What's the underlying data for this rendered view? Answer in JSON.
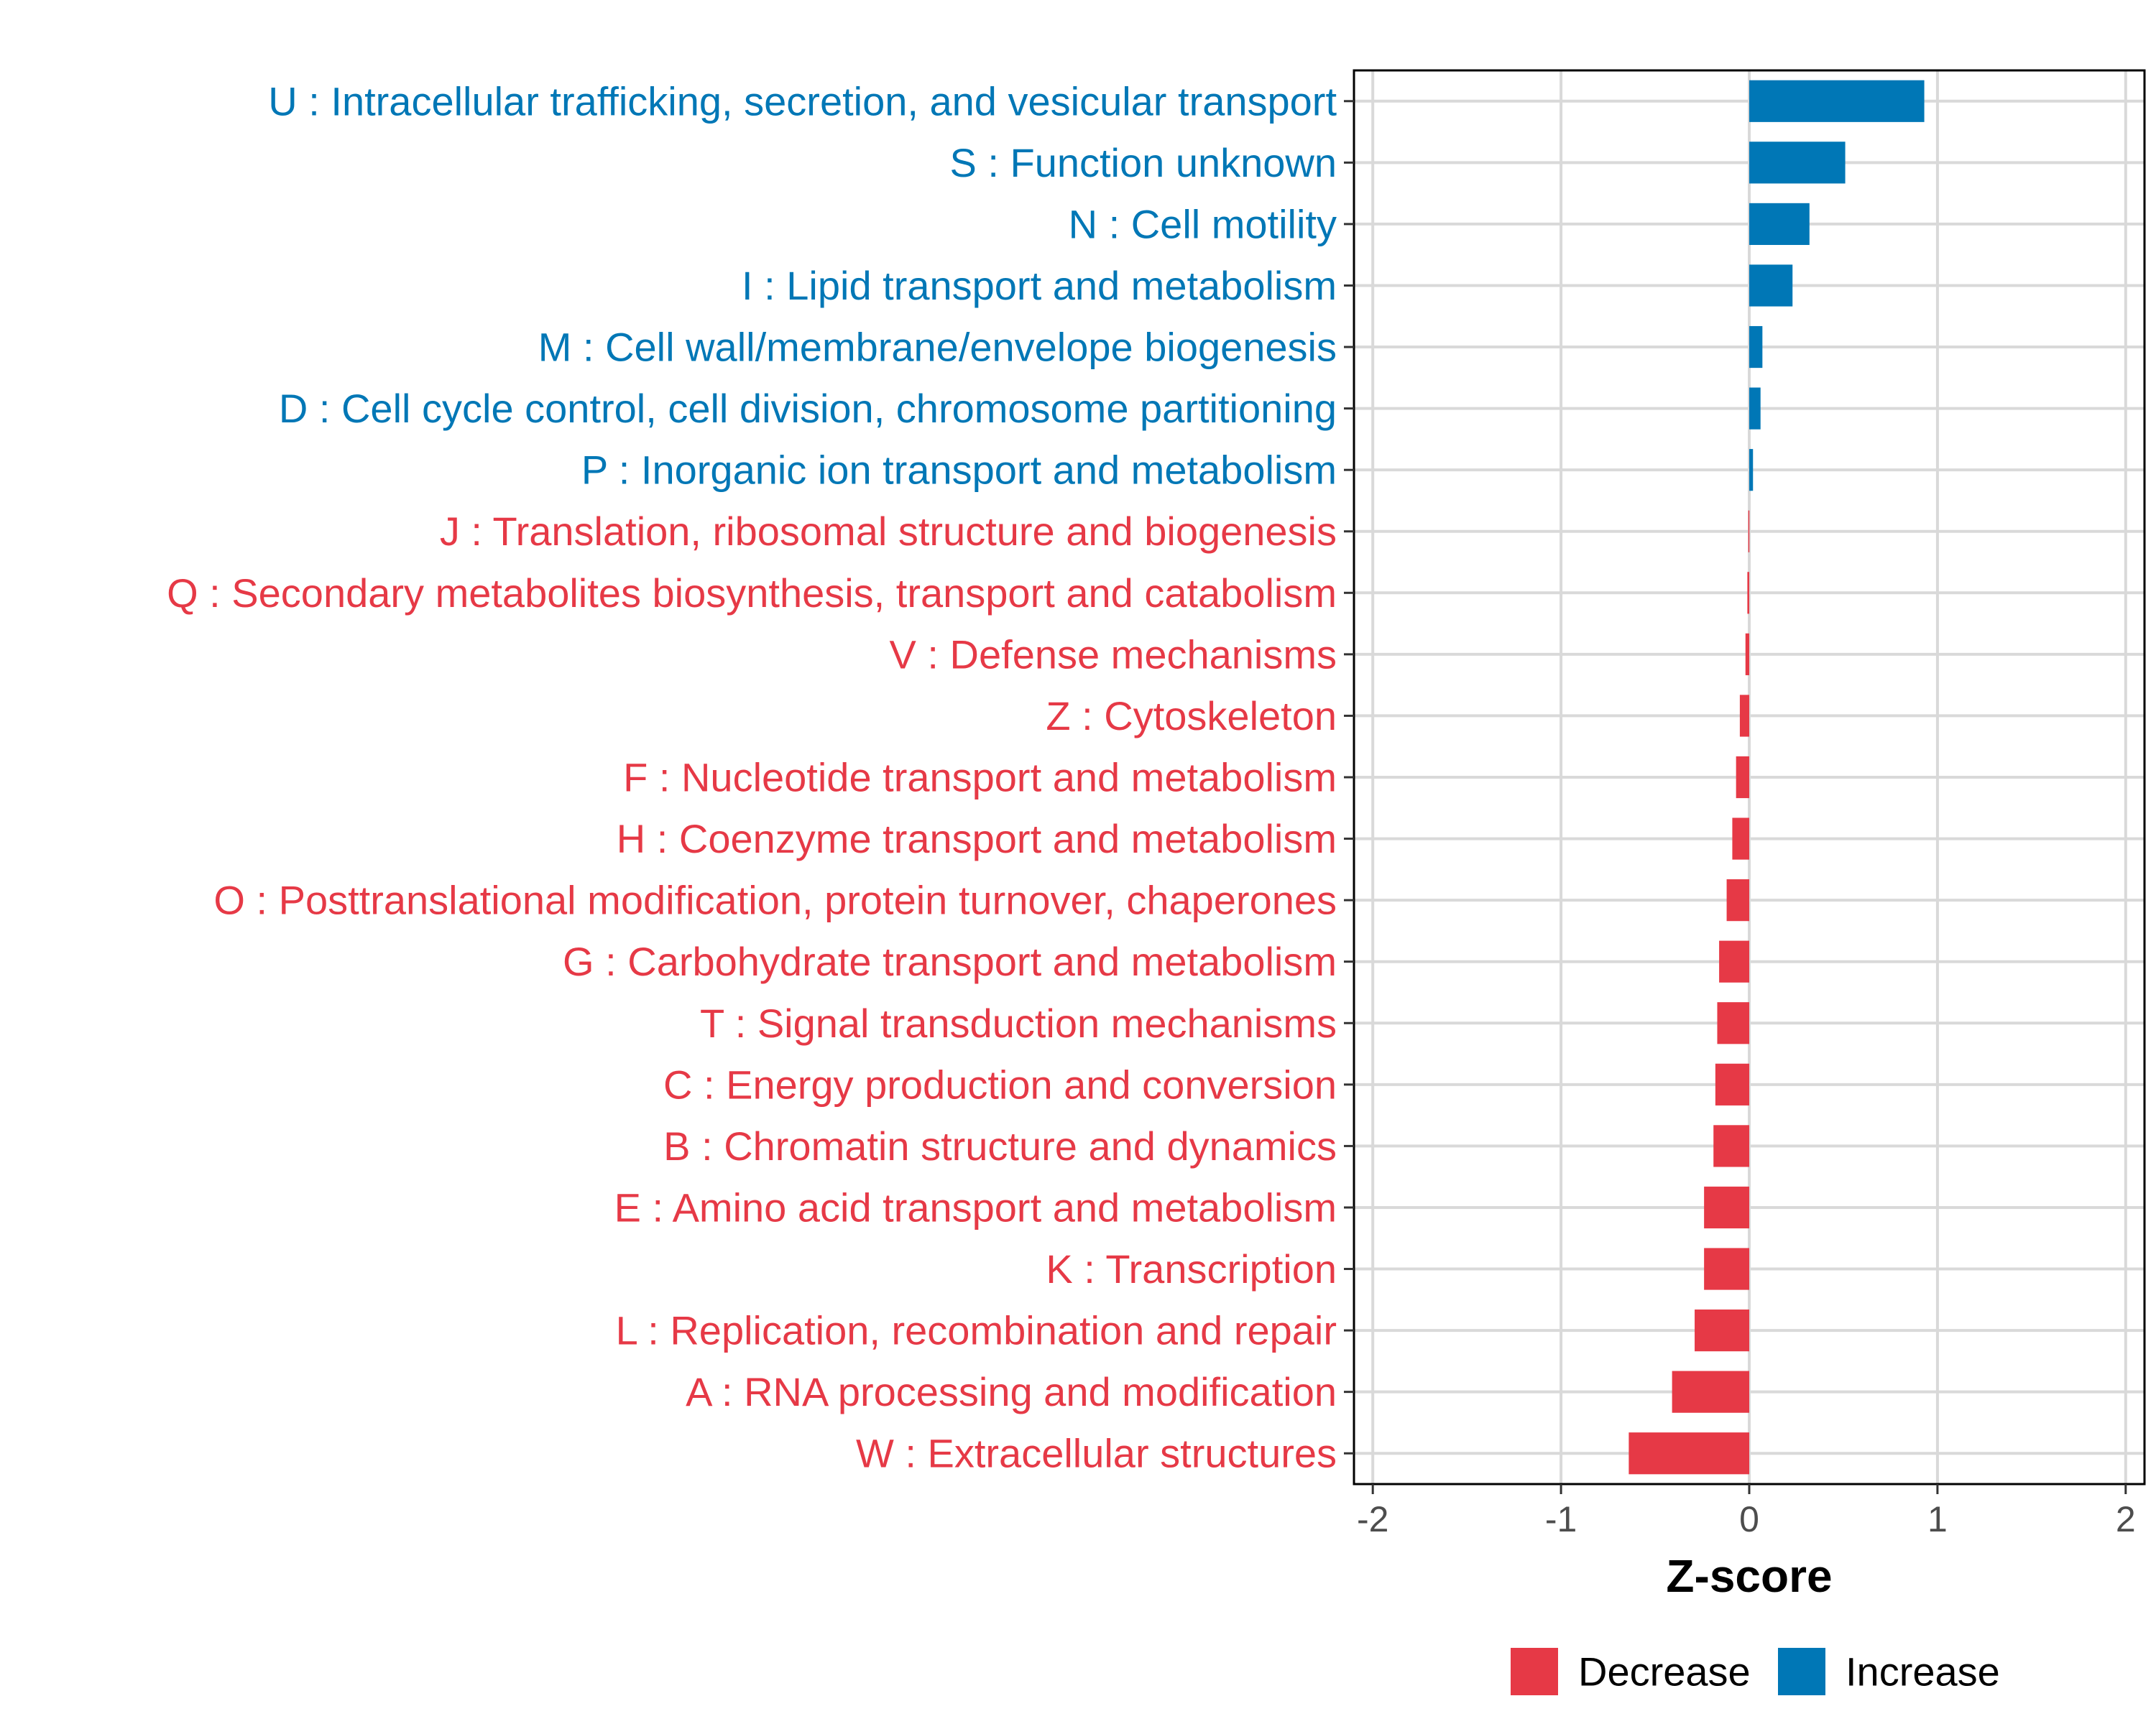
{
  "chart_data": {
    "type": "bar",
    "orientation": "horizontal",
    "xlabel": "Z-score",
    "ylabel": "",
    "xlim": [
      -2.1,
      2.1
    ],
    "xticks": [
      -2,
      -1,
      0,
      1,
      2
    ],
    "xtick_labels": [
      "-2",
      "-1",
      "0",
      "1",
      "2"
    ],
    "grid": true,
    "legend_position": "bottom",
    "legend": [
      {
        "name": "Decrease",
        "color": "#E63946"
      },
      {
        "name": "Increase",
        "color": "#0077B6"
      }
    ],
    "categories": [
      "U : Intracellular trafficking, secretion, and vesicular transport",
      "S : Function unknown",
      "N : Cell motility",
      "I : Lipid transport and metabolism",
      "M : Cell wall/membrane/envelope biogenesis",
      "D : Cell cycle control, cell division, chromosome partitioning",
      "P : Inorganic ion transport and metabolism",
      "J : Translation, ribosomal structure and biogenesis",
      "Q : Secondary metabolites biosynthesis, transport and catabolism",
      "V : Defense mechanisms",
      "Z : Cytoskeleton",
      "F : Nucleotide transport and metabolism",
      "H : Coenzyme transport and metabolism",
      "O : Posttranslational modification, protein turnover, chaperones",
      "G : Carbohydrate transport and metabolism",
      "T : Signal transduction mechanisms",
      "C : Energy production and conversion",
      "B : Chromatin structure and dynamics",
      "E : Amino acid transport and metabolism",
      "K : Transcription",
      "L : Replication, recombination and repair",
      "A : RNA processing and modification",
      "W : Extracellular structures"
    ],
    "values": [
      0.93,
      0.51,
      0.32,
      0.23,
      0.07,
      0.06,
      0.02,
      -0.005,
      -0.01,
      -0.02,
      -0.05,
      -0.07,
      -0.09,
      -0.12,
      -0.16,
      -0.17,
      -0.18,
      -0.19,
      -0.24,
      -0.24,
      -0.29,
      -0.41,
      -0.64
    ],
    "groups": [
      "Increase",
      "Increase",
      "Increase",
      "Increase",
      "Increase",
      "Increase",
      "Increase",
      "Decrease",
      "Decrease",
      "Decrease",
      "Decrease",
      "Decrease",
      "Decrease",
      "Decrease",
      "Decrease",
      "Decrease",
      "Decrease",
      "Decrease",
      "Decrease",
      "Decrease",
      "Decrease",
      "Decrease",
      "Decrease"
    ]
  }
}
